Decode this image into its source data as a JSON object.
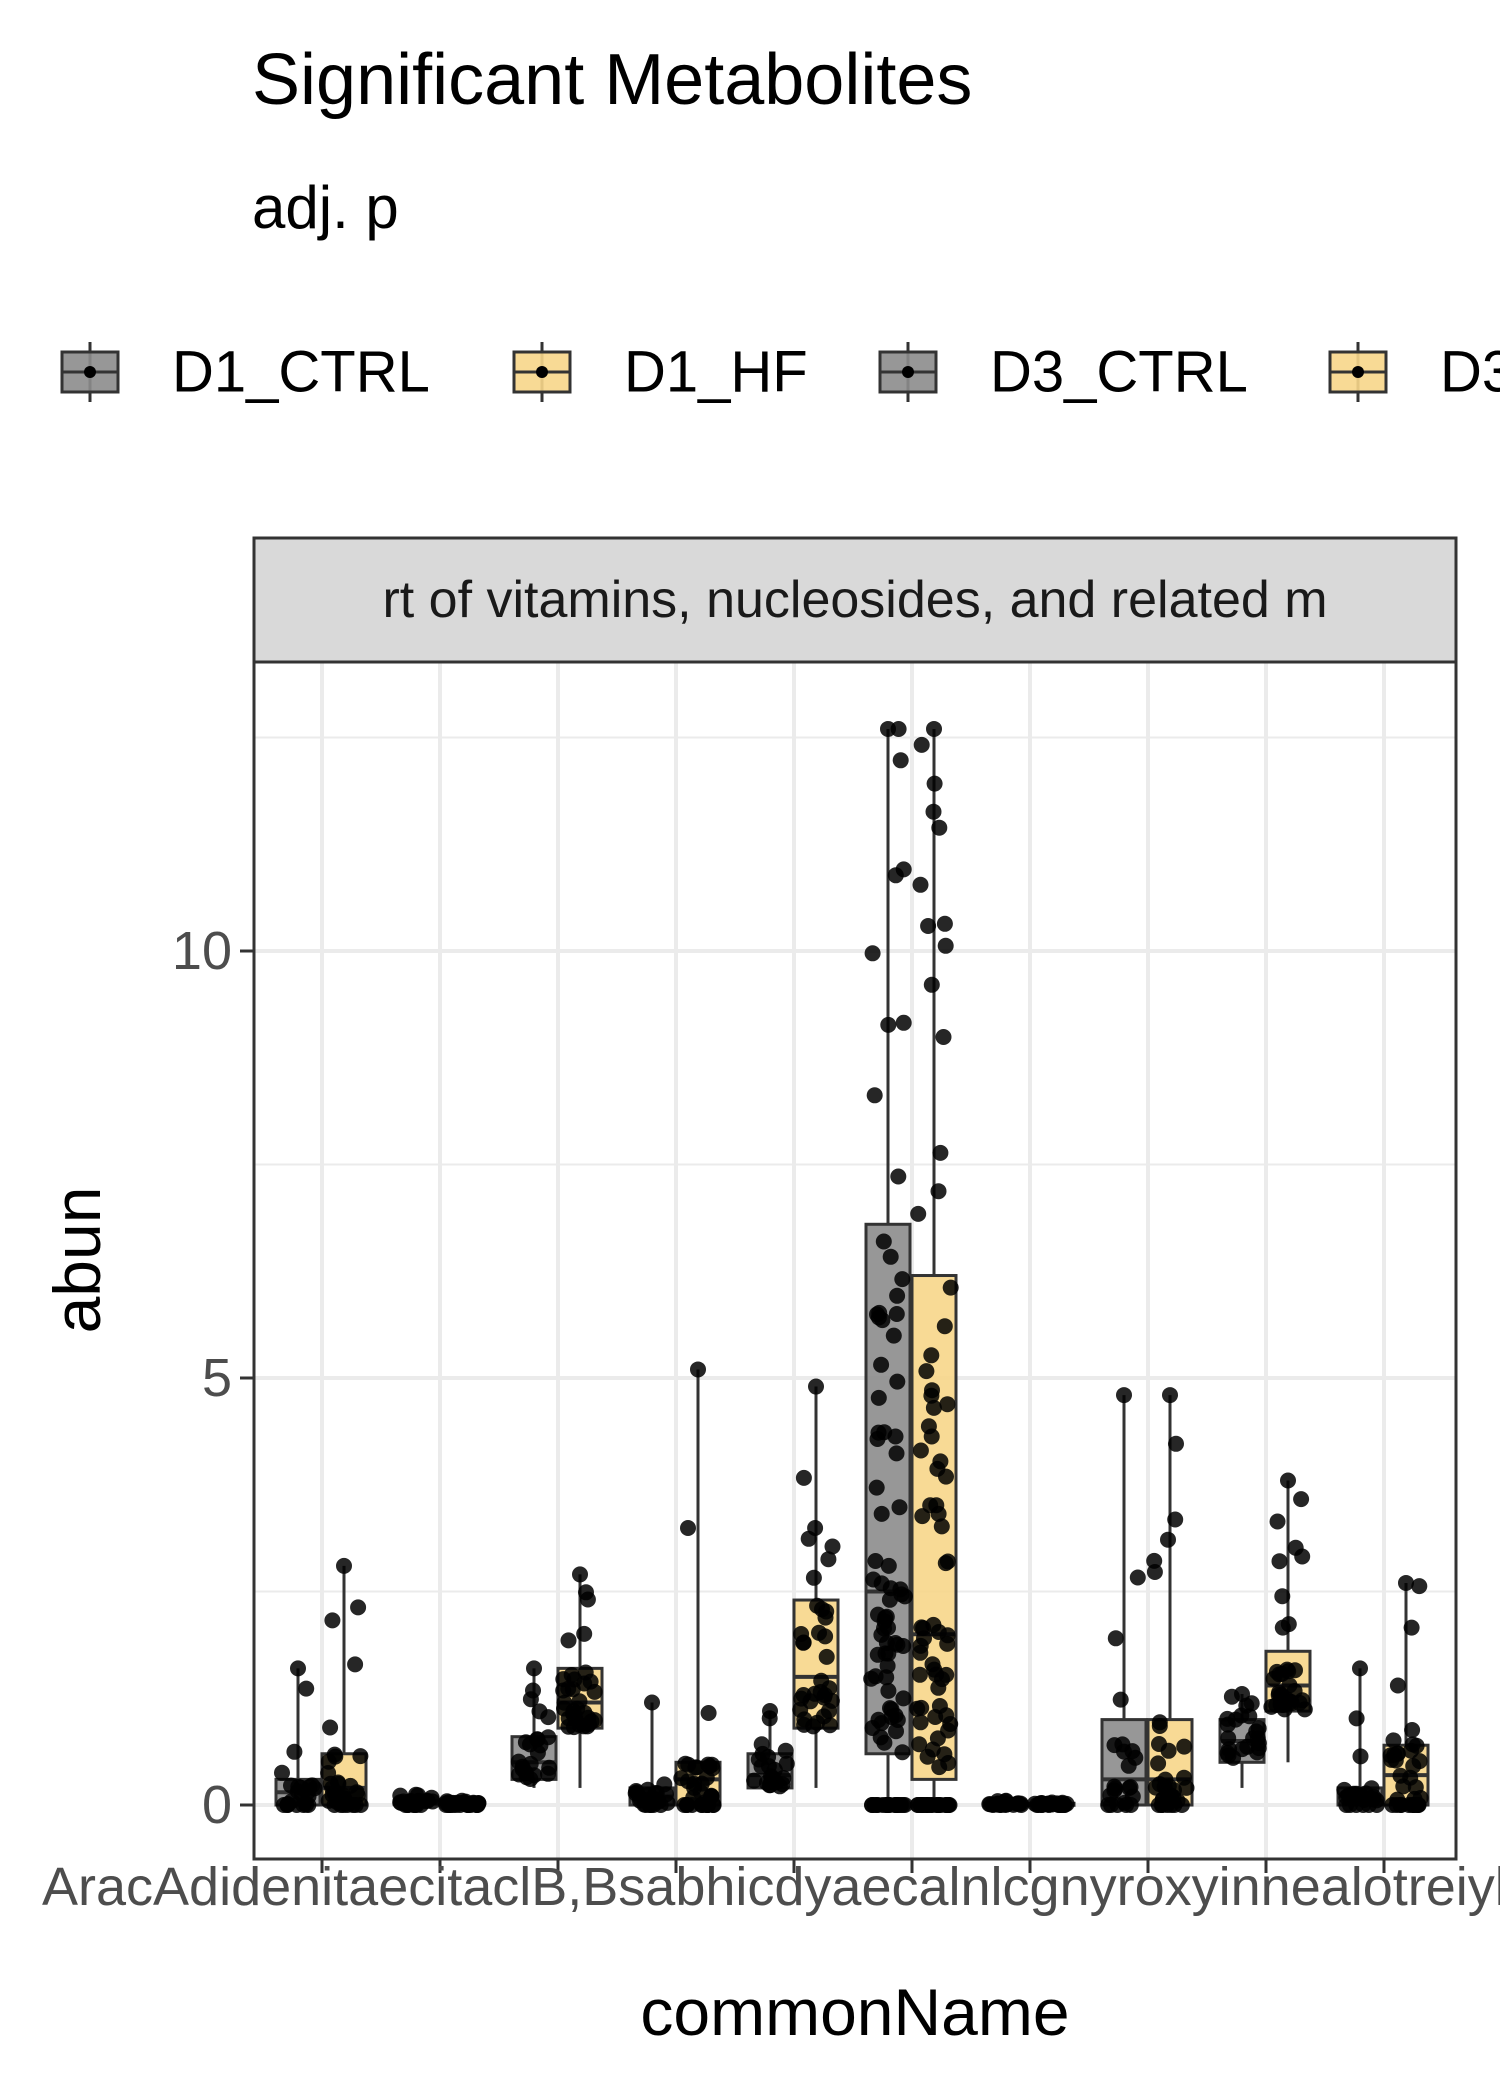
{
  "chart_data": {
    "type": "box",
    "title": "Significant Metabolites",
    "subtitle": "adj. p",
    "xlabel": "commonName",
    "ylabel": "abun",
    "facet_label": "rt of vitamins, nucleosides, and related m",
    "ylim": [
      -0.5,
      13.0
    ],
    "yticks": [
      0,
      5,
      10
    ],
    "grid": true,
    "legend_position": "top",
    "colors": {
      "CTRL_fill": "#8c8c8c",
      "HF_fill": "#f7d68a",
      "point": "#000000",
      "strip": "#d9d9d9",
      "grid": "#ebebeb"
    },
    "legend": [
      {
        "label": "D1_CTRL",
        "color": "#8c8c8c"
      },
      {
        "label": "D1_HF",
        "color": "#f7d68a"
      },
      {
        "label": "D3_CTRL",
        "color": "#8c8c8c"
      },
      {
        "label": "D3",
        "color": "#f7d68a"
      }
    ],
    "x_tick_text": "AracAdidenitaecitaclB,Bsabhicdyaecalnlcgnyroxyinnealotreiylcamme",
    "categories": [
      {
        "ctrl": {
          "min": 0,
          "q1": 0.0,
          "med": 0.15,
          "q3": 0.3,
          "max": 1.6
        },
        "hf": {
          "min": 0,
          "q1": 0.0,
          "med": 0.2,
          "q3": 0.6,
          "max": 2.8
        }
      },
      {
        "ctrl": {
          "min": 0,
          "q1": 0.01,
          "med": 0.03,
          "q3": 0.05,
          "max": 0.12
        },
        "hf": {
          "min": 0,
          "q1": 0.0,
          "med": 0.02,
          "q3": 0.03,
          "max": 0.05
        }
      },
      {
        "ctrl": {
          "min": 0.2,
          "q1": 0.3,
          "med": 0.5,
          "q3": 0.8,
          "max": 1.6
        },
        "hf": {
          "min": 0.2,
          "q1": 0.9,
          "med": 1.2,
          "q3": 1.6,
          "max": 2.7
        }
      },
      {
        "ctrl": {
          "min": 0,
          "q1": 0.0,
          "med": 0.1,
          "q3": 0.2,
          "max": 1.2
        },
        "hf": {
          "min": 0,
          "q1": 0.0,
          "med": 0.3,
          "q3": 0.5,
          "max": 5.1
        }
      },
      {
        "ctrl": {
          "min": 0.2,
          "q1": 0.2,
          "med": 0.35,
          "q3": 0.6,
          "max": 1.1
        },
        "hf": {
          "min": 0.2,
          "q1": 0.9,
          "med": 1.5,
          "q3": 2.4,
          "max": 4.9
        }
      },
      {
        "ctrl": {
          "min": 0,
          "q1": 0.6,
          "med": 2.5,
          "q3": 6.8,
          "max": 12.6
        },
        "hf": {
          "min": 0,
          "q1": 0.3,
          "med": 2.0,
          "q3": 6.2,
          "max": 12.6
        }
      },
      {
        "ctrl": {
          "min": 0,
          "q1": 0.0,
          "med": 0.01,
          "q3": 0.02,
          "max": 0.05
        },
        "hf": {
          "min": 0,
          "q1": 0.0,
          "med": 0.01,
          "q3": 0.02,
          "max": 0.03
        }
      },
      {
        "ctrl": {
          "min": 0,
          "q1": 0.0,
          "med": 0.3,
          "q3": 1.0,
          "max": 4.8
        },
        "hf": {
          "min": 0,
          "q1": 0.0,
          "med": 0.3,
          "q3": 1.0,
          "max": 4.8
        }
      },
      {
        "ctrl": {
          "min": 0.2,
          "q1": 0.5,
          "med": 0.75,
          "q3": 1.0,
          "max": 1.3
        },
        "hf": {
          "min": 0.5,
          "q1": 1.1,
          "med": 1.4,
          "q3": 1.8,
          "max": 3.8
        }
      },
      {
        "ctrl": {
          "min": 0,
          "q1": 0.0,
          "med": 0.1,
          "q3": 0.2,
          "max": 1.6
        },
        "hf": {
          "min": 0,
          "q1": 0.0,
          "med": 0.35,
          "q3": 0.7,
          "max": 2.6
        }
      }
    ]
  }
}
